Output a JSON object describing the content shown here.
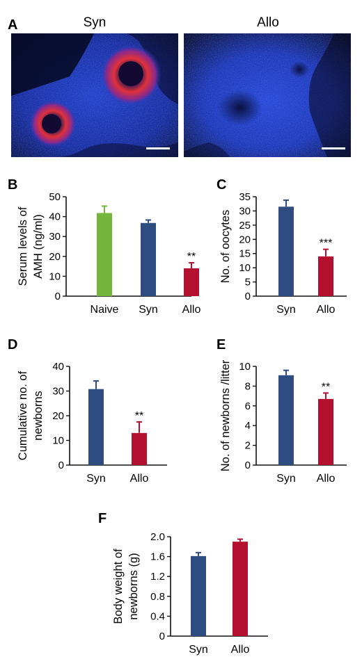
{
  "panel_a": {
    "letter": "A",
    "images": [
      {
        "label": "Syn",
        "description": "fluorescence micrograph, red staining in follicles"
      },
      {
        "label": "Allo",
        "description": "fluorescence micrograph, blue nuclear staining only"
      }
    ]
  },
  "colors": {
    "naive": "#74b63b",
    "syn": "#2f4c80",
    "allo": "#b3102f",
    "axis": "#111111",
    "micrograph_blue": "#1a2fb0",
    "micrograph_red": "#e02a2a"
  },
  "chart_data": [
    {
      "panel": "B",
      "type": "bar",
      "ylabel": [
        "Serum levels of",
        "AMH (ng/ml)"
      ],
      "ylim": [
        0,
        50
      ],
      "yticks": [
        "0",
        "10",
        "20",
        "30",
        "40",
        "50"
      ],
      "categories": [
        "Naive",
        "Syn",
        "Allo"
      ],
      "values": [
        41.8,
        36.8,
        14.0
      ],
      "errors": [
        3.5,
        1.5,
        2.8
      ],
      "bar_colors": [
        "naive",
        "syn",
        "allo"
      ],
      "significance": [
        "",
        "",
        "**"
      ]
    },
    {
      "panel": "C",
      "type": "bar",
      "ylabel": [
        "No. of oocytes"
      ],
      "ylim": [
        0,
        35
      ],
      "yticks": [
        "0",
        "5",
        "10",
        "15",
        "20",
        "25",
        "30",
        "35"
      ],
      "categories": [
        "Syn",
        "Allo"
      ],
      "values": [
        31.5,
        14.0
      ],
      "errors": [
        2.3,
        2.5
      ],
      "bar_colors": [
        "syn",
        "allo"
      ],
      "significance": [
        "",
        "***"
      ]
    },
    {
      "panel": "D",
      "type": "bar",
      "ylabel": [
        "Cumulative no. of",
        "newborns"
      ],
      "ylim": [
        0,
        40
      ],
      "yticks": [
        "0",
        "10",
        "20",
        "30",
        "40"
      ],
      "categories": [
        "Syn",
        "Allo"
      ],
      "values": [
        30.8,
        13.0
      ],
      "errors": [
        3.3,
        4.5
      ],
      "bar_colors": [
        "syn",
        "allo"
      ],
      "significance": [
        "",
        "**"
      ]
    },
    {
      "panel": "E",
      "type": "bar",
      "ylabel": [
        "No. of newborns /litter"
      ],
      "ylim": [
        0,
        10
      ],
      "yticks": [
        "0",
        "2",
        "4",
        "6",
        "8",
        "10"
      ],
      "categories": [
        "Syn",
        "Allo"
      ],
      "values": [
        9.1,
        6.7
      ],
      "errors": [
        0.5,
        0.6
      ],
      "bar_colors": [
        "syn",
        "allo"
      ],
      "significance": [
        "",
        "**"
      ]
    },
    {
      "panel": "F",
      "type": "bar",
      "ylabel": [
        "Body weight of",
        "newborns (g)"
      ],
      "ylim": [
        0,
        2.0
      ],
      "yticks": [
        "0",
        "0.4",
        "0.8",
        "1.2",
        "1.6",
        "2.0"
      ],
      "categories": [
        "Syn",
        "Allo"
      ],
      "values": [
        1.61,
        1.9
      ],
      "errors": [
        0.07,
        0.05
      ],
      "bar_colors": [
        "syn",
        "allo"
      ],
      "significance": [
        "",
        ""
      ]
    }
  ]
}
